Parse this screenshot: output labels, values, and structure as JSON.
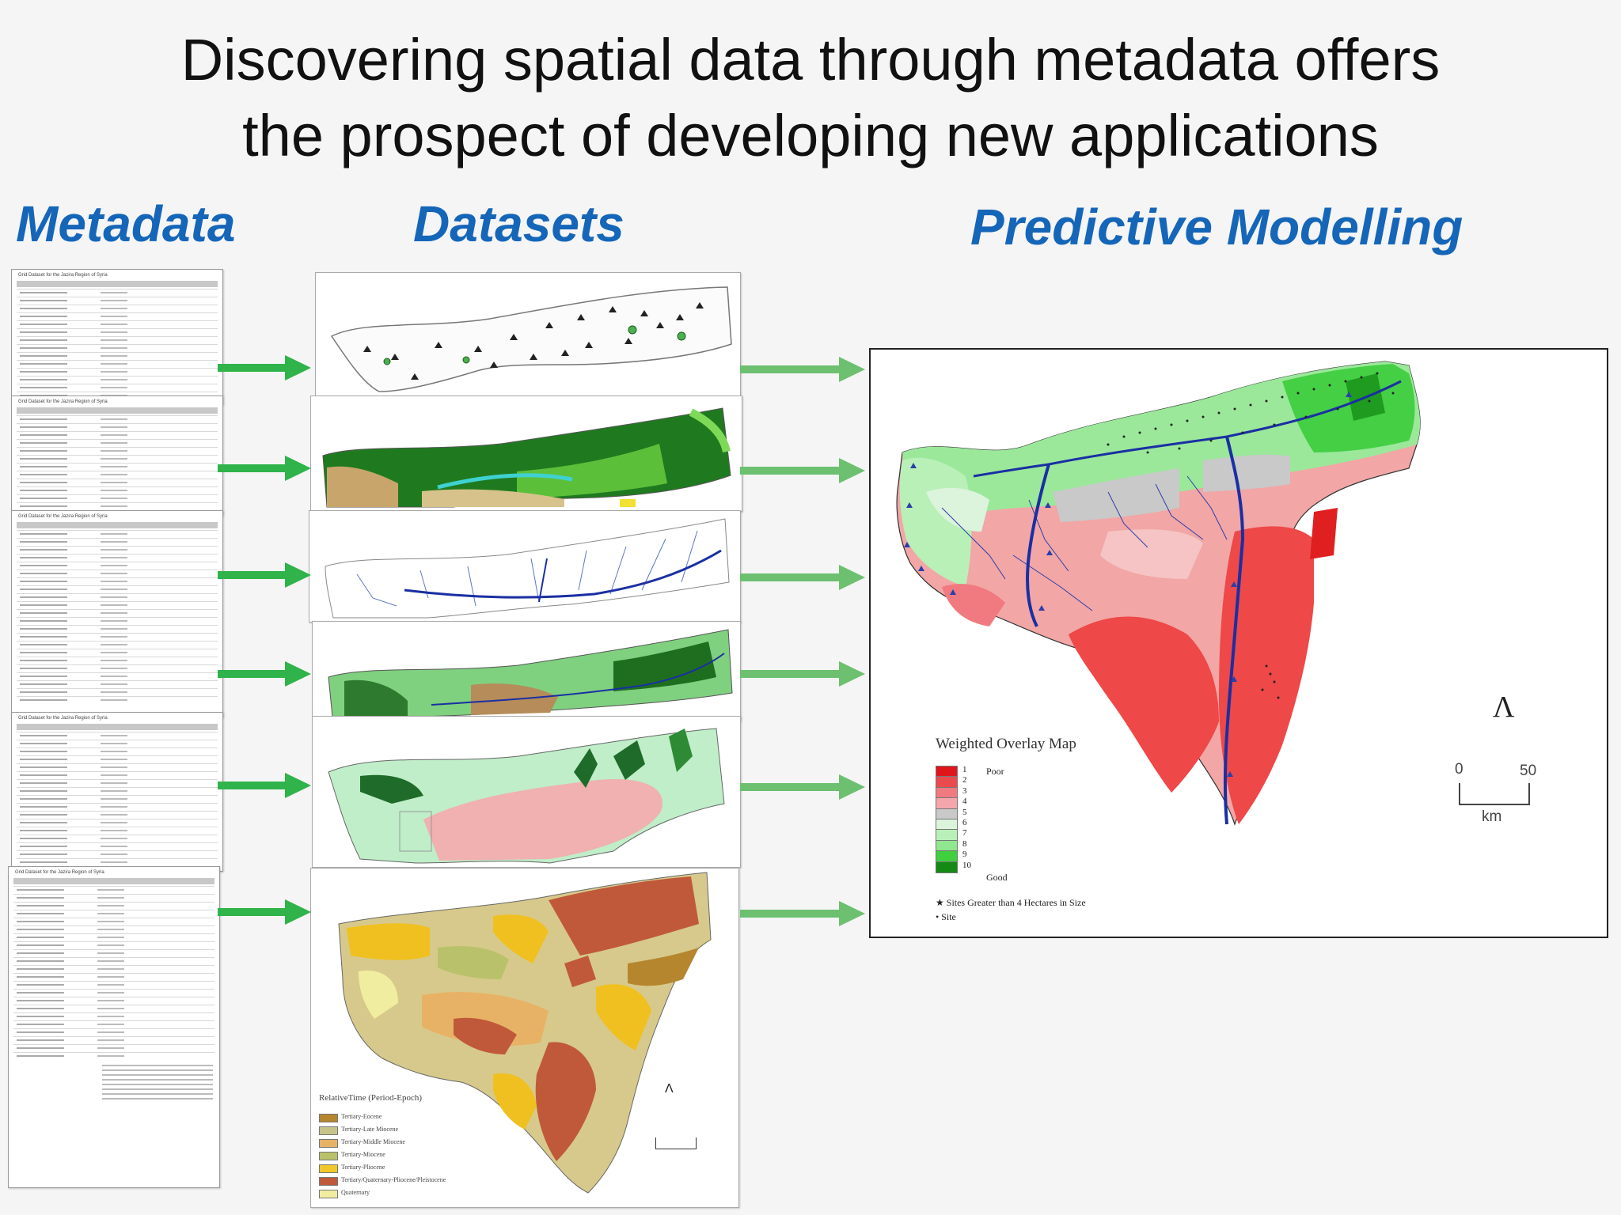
{
  "title": {
    "line1": "Discovering spatial data through metadata offers",
    "line2": "the prospect of developing new applications"
  },
  "columns": {
    "metadata": "Metadata",
    "datasets": "Datasets",
    "predictive": "Predictive Modelling"
  },
  "metadata_title": "Grid Dataset for the Jazira Region of Syria",
  "colors": {
    "heading_blue": "#1566b8",
    "arrow_green": "#2fb34a",
    "arrow_light_green": "#6cc070"
  },
  "weighted_overlay": {
    "title": "Weighted Overlay Map",
    "classes": [
      {
        "value": "1",
        "color": "#e0141c"
      },
      {
        "value": "2",
        "color": "#ea4a4e"
      },
      {
        "value": "3",
        "color": "#f07a80"
      },
      {
        "value": "4",
        "color": "#f4a6aa"
      },
      {
        "value": "5",
        "color": "#c9c9c9"
      },
      {
        "value": "6",
        "color": "#dcf3dc"
      },
      {
        "value": "7",
        "color": "#b8f0b8"
      },
      {
        "value": "8",
        "color": "#8fe88f"
      },
      {
        "value": "9",
        "color": "#3fcf3f"
      },
      {
        "value": "10",
        "color": "#148a14"
      }
    ],
    "low_label": "Poor",
    "high_label": "Good",
    "sites_large": "Sites Greater than 4 Hectares in Size",
    "sites": "Site",
    "scale_start": "0",
    "scale_end": "50",
    "scale_unit": "km"
  },
  "geology_legend": {
    "title": "RelativeTime (Period-Epoch)",
    "items": [
      {
        "label": "Tertiary-Eocene",
        "color": "#b5862e"
      },
      {
        "label": "Tertiary-Late Miocene",
        "color": "#c7c48a"
      },
      {
        "label": "Tertiary-Middle Miocene",
        "color": "#e8b266"
      },
      {
        "label": "Tertiary-Miocene",
        "color": "#b9c26a"
      },
      {
        "label": "Tertiary-Pliocene",
        "color": "#f2c72a"
      },
      {
        "label": "Tertiary/Quaternary-Pliocene/Pleistocene",
        "color": "#c0593a"
      },
      {
        "label": "Quaternary",
        "color": "#f1eda0"
      }
    ]
  }
}
